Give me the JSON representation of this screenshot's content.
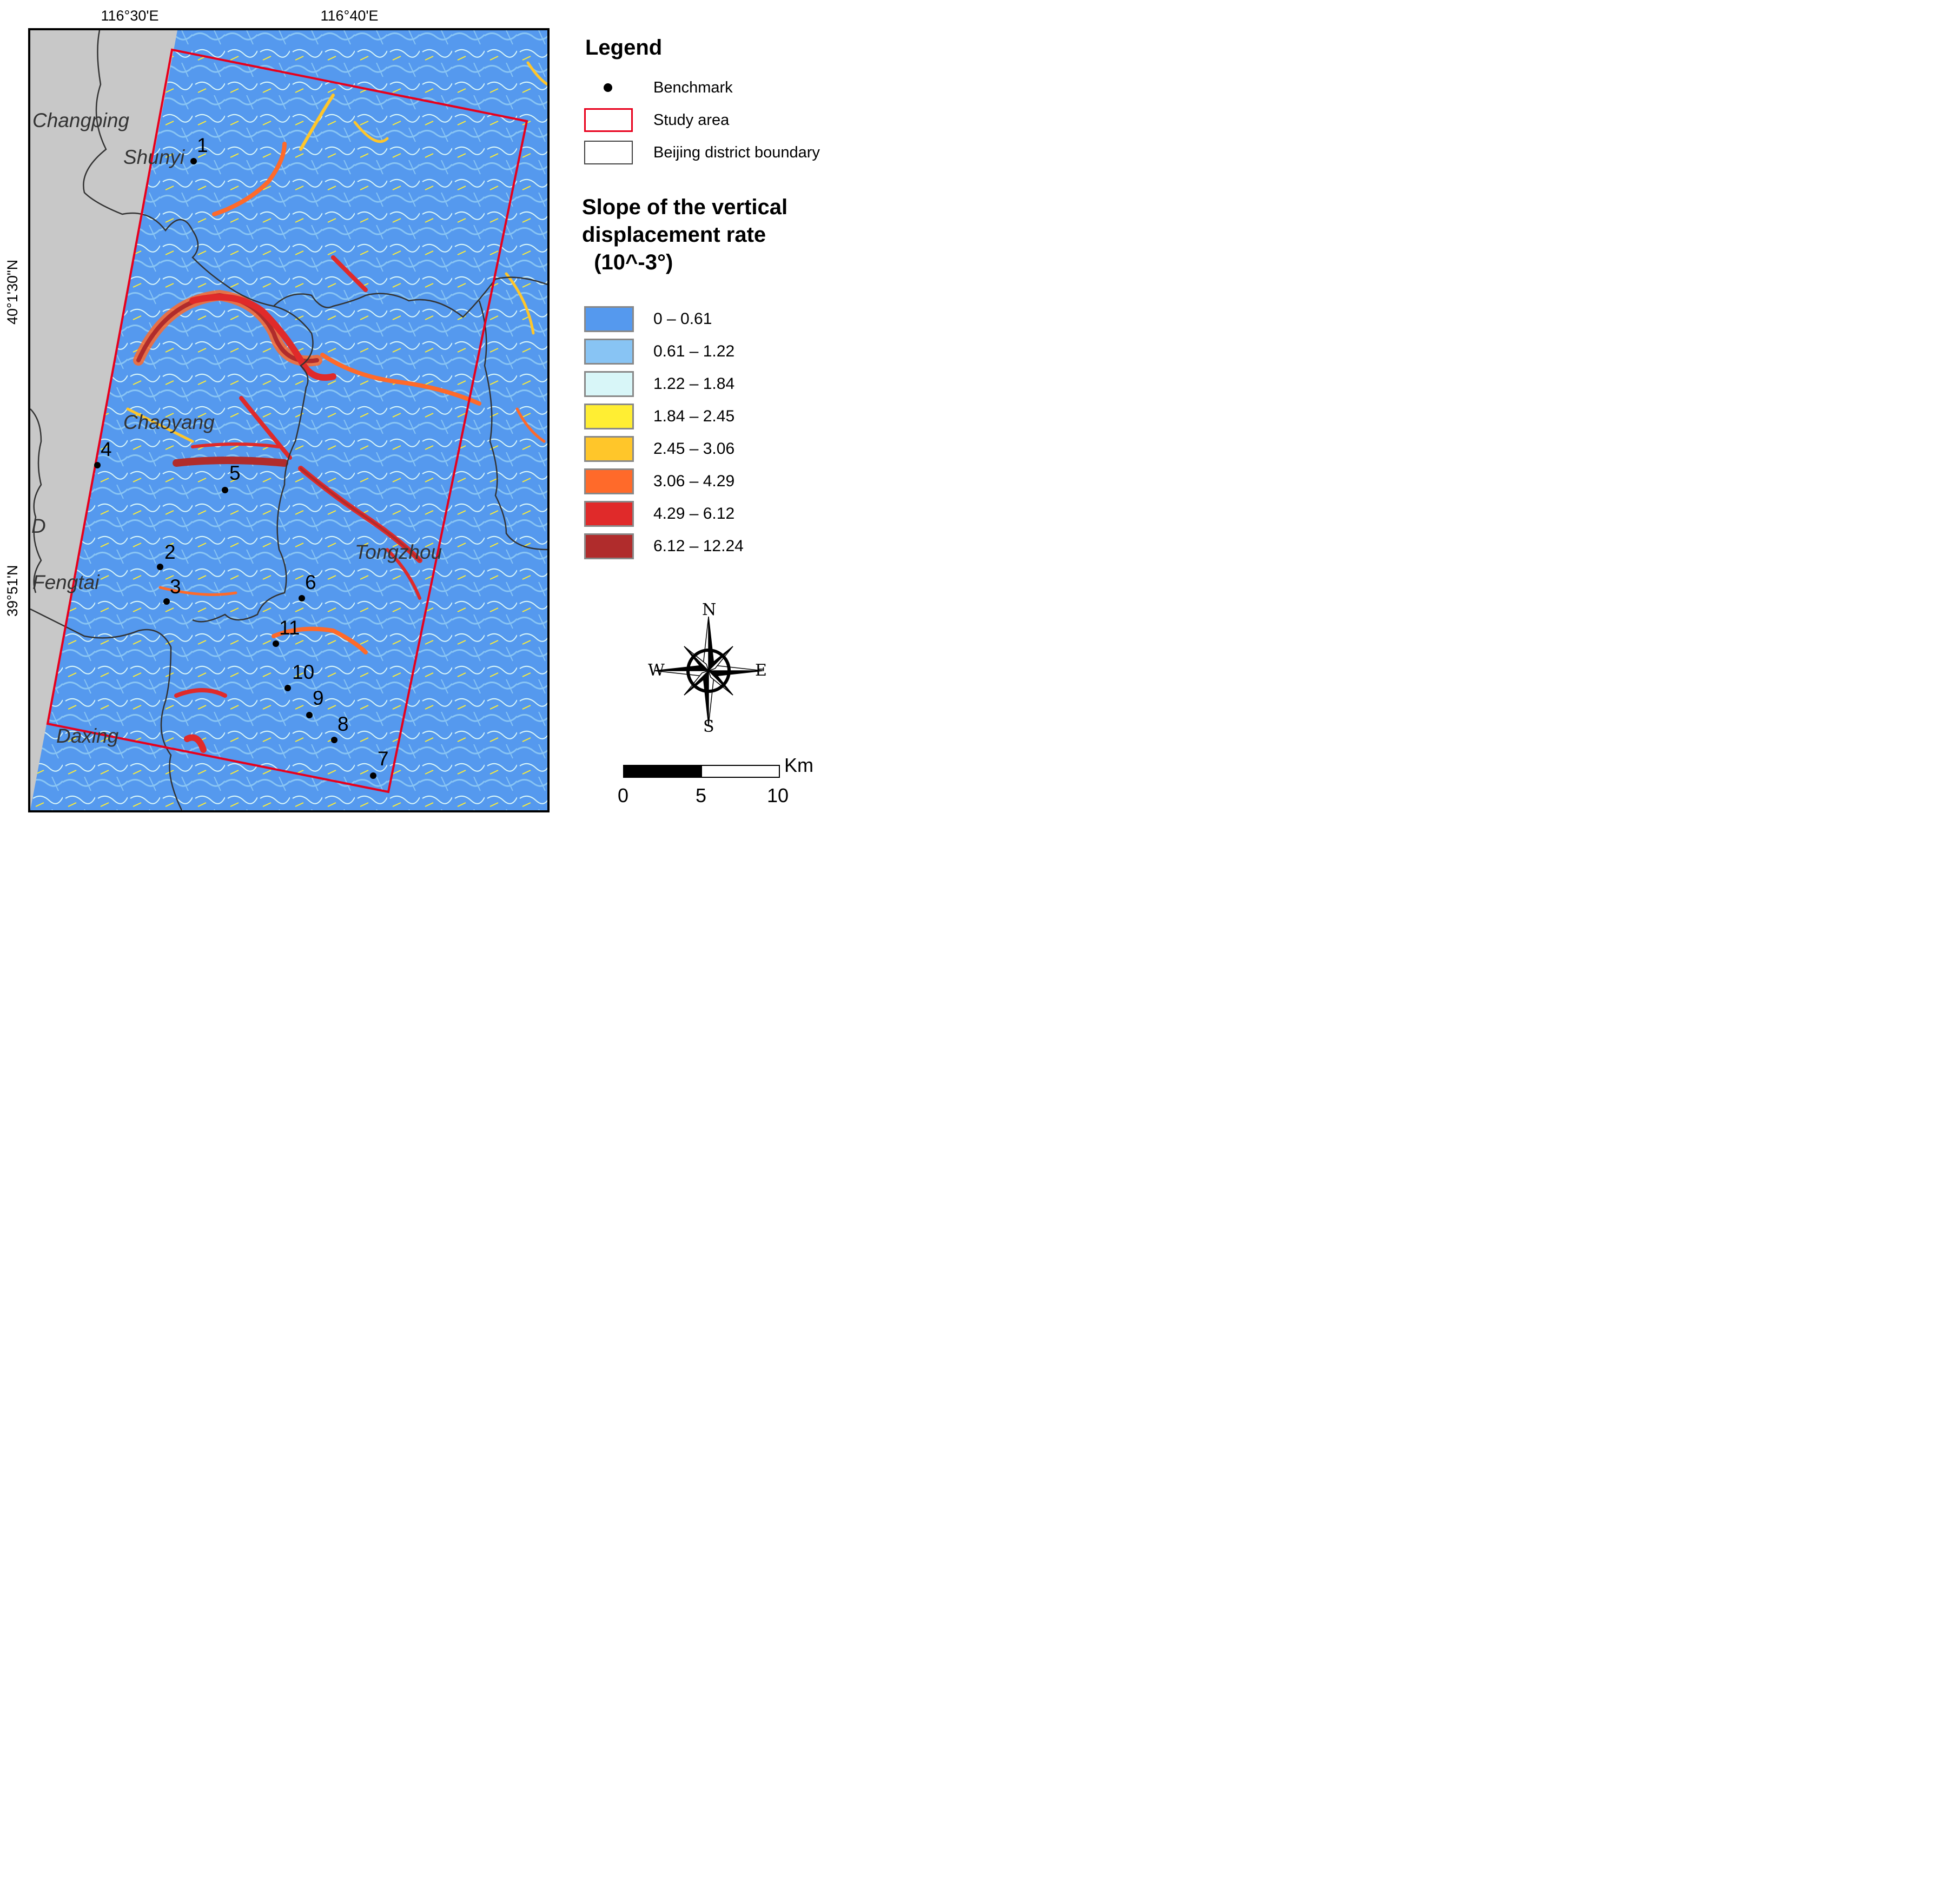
{
  "map": {
    "graticule": {
      "lon_labels": [
        "116°30'E",
        "116°40'E"
      ],
      "lat_labels": [
        "40°1'30\"N",
        "39°51'N"
      ]
    },
    "districts": [
      "Changping",
      "Shunyi",
      "Chaoyang",
      "D",
      "Fengtai",
      "Tongzhou",
      "Daxing"
    ],
    "benchmarks": [
      "1",
      "2",
      "3",
      "4",
      "5",
      "6",
      "7",
      "8",
      "9",
      "10",
      "11"
    ],
    "colors": {
      "outside_study_area": "#c8c8c8",
      "study_area_outline": "#e8001c",
      "district_boundary": "#333333"
    }
  },
  "legend": {
    "title": "Legend",
    "items": [
      {
        "label": "Benchmark",
        "icon": "black-dot"
      },
      {
        "label": "Study area",
        "icon": "red-rectangle"
      },
      {
        "label": "Beijing district boundary",
        "icon": "gray-rectangle"
      }
    ],
    "slope_title": "Slope of the vertical\ndisplacement rate\n  (10^-3°)",
    "classes": [
      {
        "label": "0 – 0.61",
        "color": "#5599ee"
      },
      {
        "label": "0.61 – 1.22",
        "color": "#88c4f4"
      },
      {
        "label": "1.22 – 1.84",
        "color": "#d8f6f8"
      },
      {
        "label": "1.84 – 2.45",
        "color": "#ffee33"
      },
      {
        "label": "2.45 – 3.06",
        "color": "#ffc62a"
      },
      {
        "label": "3.06 – 4.29",
        "color": "#ff6a2a"
      },
      {
        "label": "4.29 – 6.12",
        "color": "#e02a2a"
      },
      {
        "label": "6.12 – 12.24",
        "color": "#b02c2c"
      }
    ]
  },
  "north_arrow": {
    "n": "N",
    "s": "S",
    "e": "E",
    "w": "W"
  },
  "scale_bar": {
    "unit": "Km",
    "labels": [
      "0",
      "5",
      "10"
    ]
  }
}
